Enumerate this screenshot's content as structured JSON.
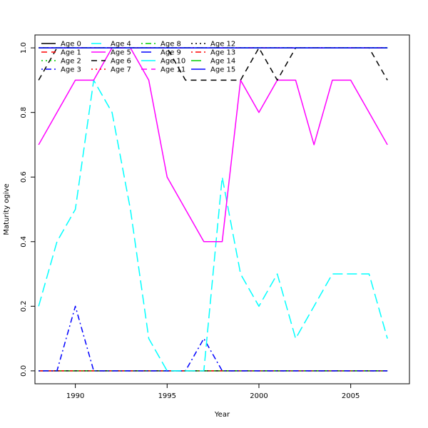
{
  "chart_data": {
    "type": "line",
    "title": "",
    "xlabel": "Year",
    "ylabel": "Maturity ogive",
    "xlim": [
      1987.8,
      2008.2
    ],
    "ylim": [
      -0.04,
      1.04
    ],
    "x_ticks": [
      1990,
      1995,
      2000,
      2005
    ],
    "y_ticks": [
      0.0,
      0.2,
      0.4,
      0.6,
      0.8,
      1.0
    ],
    "x_tick_labels": [
      "1990",
      "1995",
      "2000",
      "2005"
    ],
    "y_tick_labels": [
      "0.0",
      "0.2",
      "0.4",
      "0.6",
      "0.8",
      "1.0"
    ],
    "grid": false,
    "legend_placement": "top-left",
    "legend_columns": 4,
    "x": [
      1988,
      1989,
      1990,
      1991,
      1992,
      1993,
      1994,
      1995,
      1996,
      1997,
      1998,
      1999,
      2000,
      2001,
      2002,
      2003,
      2004,
      2005,
      2006,
      2007
    ],
    "series": [
      {
        "name": "Age 0",
        "color": "#000000",
        "dash": "solid",
        "values": [
          0,
          0,
          0,
          0,
          0,
          0,
          0,
          0,
          0,
          0,
          0,
          0,
          0,
          0,
          0,
          0,
          0,
          0,
          0,
          0
        ]
      },
      {
        "name": "Age 1",
        "color": "#ff0000",
        "dash": "dashed",
        "values": [
          0,
          0,
          0,
          0,
          0,
          0,
          0,
          0,
          0,
          0,
          0,
          0,
          0,
          0,
          0,
          0,
          0,
          0,
          0,
          0
        ]
      },
      {
        "name": "Age 2",
        "color": "#00cd00",
        "dash": "dotted",
        "values": [
          0,
          0,
          0,
          0,
          0,
          0,
          0,
          0,
          0,
          0,
          0,
          0,
          0,
          0,
          0,
          0,
          0,
          0,
          0,
          0
        ]
      },
      {
        "name": "Age 3",
        "color": "#0000ff",
        "dash": "dotdash",
        "values": [
          0,
          0,
          0.2,
          0,
          0,
          0,
          0,
          0,
          0,
          0.1,
          0,
          0,
          0,
          0,
          0,
          0,
          0,
          0,
          0,
          0
        ]
      },
      {
        "name": "Age 4",
        "color": "#00ffff",
        "dash": "longdash",
        "values": [
          0.2,
          0.4,
          0.5,
          0.9,
          0.8,
          0.5,
          0.1,
          0,
          0,
          0,
          0.6,
          0.3,
          0.2,
          0.3,
          0.1,
          0.2,
          0.3,
          0.3,
          0.3,
          0.1
        ]
      },
      {
        "name": "Age 5",
        "color": "#ff00ff",
        "dash": "solid",
        "values": [
          0.7,
          0.8,
          0.9,
          0.9,
          1.0,
          1.0,
          0.9,
          0.6,
          0.5,
          0.4,
          0.4,
          0.9,
          0.8,
          0.9,
          0.9,
          0.7,
          0.9,
          0.9,
          0.8,
          0.7
        ]
      },
      {
        "name": "Age 6",
        "color": "#000000",
        "dash": "dashed",
        "values": [
          0.9,
          1.0,
          1.0,
          1.0,
          1.0,
          1.0,
          1.0,
          1.0,
          0.9,
          0.9,
          0.9,
          0.9,
          1.0,
          0.9,
          1.0,
          1.0,
          1.0,
          1.0,
          1.0,
          0.9
        ]
      },
      {
        "name": "Age 7",
        "color": "#ff0000",
        "dash": "dotted",
        "values": [
          1,
          1,
          1,
          1,
          1,
          1,
          1,
          1,
          1,
          1,
          1,
          1,
          1,
          1,
          1,
          1,
          1,
          1,
          1,
          1
        ]
      },
      {
        "name": "Age 8",
        "color": "#00cd00",
        "dash": "dotdash",
        "values": [
          1,
          1,
          1,
          1,
          1,
          1,
          1,
          1,
          1,
          1,
          1,
          1,
          1,
          1,
          1,
          1,
          1,
          1,
          1,
          1
        ]
      },
      {
        "name": "Age 9",
        "color": "#0000ff",
        "dash": "longdash",
        "values": [
          1,
          1,
          1,
          1,
          1,
          1,
          1,
          1,
          1,
          1,
          1,
          1,
          1,
          1,
          1,
          1,
          1,
          1,
          1,
          1
        ]
      },
      {
        "name": "Age 10",
        "color": "#00ffff",
        "dash": "solid",
        "values": [
          1,
          1,
          1,
          1,
          1,
          1,
          1,
          1,
          1,
          1,
          1,
          1,
          1,
          1,
          1,
          1,
          1,
          1,
          1,
          1
        ]
      },
      {
        "name": "Age 11",
        "color": "#ff00ff",
        "dash": "dashed",
        "values": [
          1,
          1,
          1,
          1,
          1,
          1,
          1,
          1,
          1,
          1,
          1,
          1,
          1,
          1,
          1,
          1,
          1,
          1,
          1,
          1
        ]
      },
      {
        "name": "Age 12",
        "color": "#000000",
        "dash": "dotted",
        "values": [
          1,
          1,
          1,
          1,
          1,
          1,
          1,
          1,
          1,
          1,
          1,
          1,
          1,
          1,
          1,
          1,
          1,
          1,
          1,
          1
        ]
      },
      {
        "name": "Age 13",
        "color": "#ff0000",
        "dash": "dotdash",
        "values": [
          1,
          1,
          1,
          1,
          1,
          1,
          1,
          1,
          1,
          1,
          1,
          1,
          1,
          1,
          1,
          1,
          1,
          1,
          1,
          1
        ]
      },
      {
        "name": "Age 14",
        "color": "#00cd00",
        "dash": "longdash",
        "values": [
          1,
          1,
          1,
          1,
          1,
          1,
          1,
          1,
          1,
          1,
          1,
          1,
          1,
          1,
          1,
          1,
          1,
          1,
          1,
          1
        ]
      },
      {
        "name": "Age 15",
        "color": "#0000ff",
        "dash": "solid",
        "values": [
          1,
          1,
          1,
          1,
          1,
          1,
          1,
          1,
          1,
          1,
          1,
          1,
          1,
          1,
          1,
          1,
          1,
          1,
          1,
          1
        ]
      }
    ]
  }
}
